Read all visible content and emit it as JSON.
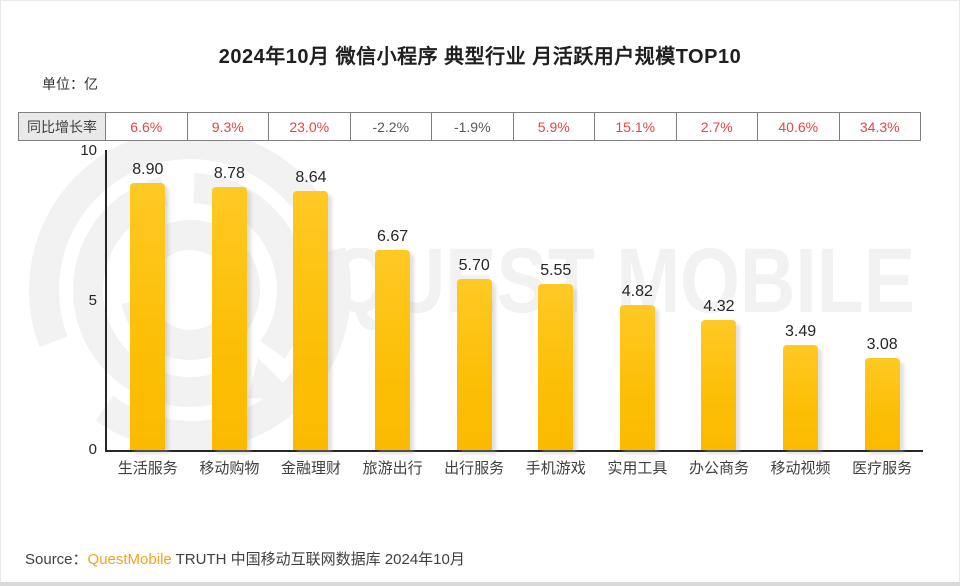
{
  "title": "2024年10月 微信小程序 典型行业 月活跃用户规模TOP10",
  "unit_label": "单位：亿",
  "growth_row": {
    "label": "同比增长率",
    "values": [
      "6.6%",
      "9.3%",
      "23.0%",
      "-2.2%",
      "-1.9%",
      "5.9%",
      "15.1%",
      "2.7%",
      "40.6%",
      "34.3%"
    ]
  },
  "chart_data": {
    "type": "bar",
    "title": "2024年10月 微信小程序 典型行业 月活跃用户规模TOP10",
    "ylabel": "单位：亿",
    "categories": [
      "生活服务",
      "移动购物",
      "金融理财",
      "旅游出行",
      "出行服务",
      "手机游戏",
      "实用工具",
      "办公商务",
      "移动视频",
      "医疗服务"
    ],
    "values": [
      8.9,
      8.78,
      8.64,
      6.67,
      5.7,
      5.55,
      4.82,
      4.32,
      3.49,
      3.08
    ],
    "value_labels": [
      "8.90",
      "8.78",
      "8.64",
      "6.67",
      "5.70",
      "5.55",
      "4.82",
      "4.32",
      "3.49",
      "3.08"
    ],
    "growth_rates": [
      "6.6%",
      "9.3%",
      "23.0%",
      "-2.2%",
      "-1.9%",
      "5.9%",
      "15.1%",
      "2.7%",
      "40.6%",
      "34.3%"
    ],
    "yticks": [
      0,
      5,
      10
    ],
    "ylim": [
      0,
      10
    ],
    "grid": false,
    "legend": "none",
    "bar_color": "#FDC20F"
  },
  "watermark": {
    "text": "QUEST MOBILE"
  },
  "source": {
    "prefix": "Source：",
    "brand": "QuestMobile",
    "suffix": " TRUTH 中国移动互联网数据库 2024年10月"
  },
  "colors": {
    "positive": "#e54545",
    "negative": "#595959",
    "bar": "#FDC20F",
    "brand_orange": "#F5A220",
    "watermark": "#f2f2f2"
  }
}
